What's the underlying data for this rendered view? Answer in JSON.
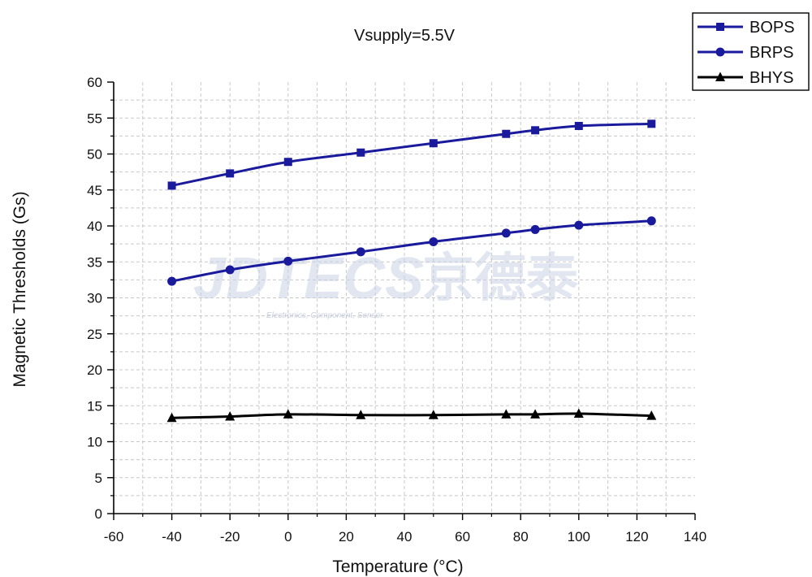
{
  "chart_data": {
    "type": "line",
    "title": "Vsupply=5.5V",
    "xlabel": "Temperature (°C)",
    "ylabel": "Magnetic Thresholds (Gs)",
    "xlim": [
      -60,
      140
    ],
    "ylim": [
      0,
      60
    ],
    "xticks": [
      "-60",
      "-40",
      "-20",
      "0",
      "20",
      "40",
      "60",
      "80",
      "100",
      "120",
      "140"
    ],
    "yticks": [
      "0",
      "5",
      "10",
      "15",
      "20",
      "25",
      "30",
      "35",
      "40",
      "45",
      "50",
      "55",
      "60"
    ],
    "grid": true,
    "legend_position": "top-right (outside plot)",
    "x": [
      -40,
      -20,
      0,
      25,
      50,
      75,
      85,
      100,
      125
    ],
    "series": [
      {
        "name": "BOPS",
        "marker": "square",
        "color": "#1a1a9c",
        "values": [
          45.6,
          47.3,
          48.9,
          50.2,
          51.5,
          52.8,
          53.3,
          53.9,
          54.2
        ]
      },
      {
        "name": "BRPS",
        "marker": "circle",
        "color": "#1a1a9c",
        "values": [
          32.3,
          33.9,
          35.1,
          36.4,
          37.8,
          39.0,
          39.5,
          40.1,
          40.7
        ]
      },
      {
        "name": "BHYS",
        "marker": "triangle",
        "color": "#000000",
        "values": [
          13.3,
          13.5,
          13.8,
          13.7,
          13.7,
          13.8,
          13.8,
          13.9,
          13.6
        ]
      }
    ]
  },
  "watermark": {
    "brand": "JDTECS",
    "cjk": "京德泰",
    "tagline": "Electronics, Component, Sensor"
  }
}
